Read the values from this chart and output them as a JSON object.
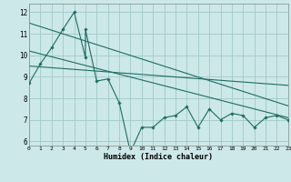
{
  "xlabel": "Humidex (Indice chaleur)",
  "xlim": [
    0,
    23
  ],
  "ylim": [
    5.8,
    12.4
  ],
  "xticks": [
    0,
    1,
    2,
    3,
    4,
    5,
    6,
    7,
    8,
    9,
    10,
    11,
    12,
    13,
    14,
    15,
    16,
    17,
    18,
    19,
    20,
    21,
    22,
    23
  ],
  "yticks": [
    6,
    7,
    8,
    9,
    10,
    11,
    12
  ],
  "bg_color": "#cde8e8",
  "grid_color": "#a0c8c8",
  "line_color": "#1a6e64",
  "data_x": [
    0,
    1,
    2,
    3,
    4,
    5,
    5,
    6,
    7,
    8,
    9,
    10,
    11,
    12,
    13,
    14,
    15,
    16,
    17,
    18,
    19,
    20,
    21,
    22,
    23
  ],
  "data_y": [
    8.7,
    9.6,
    10.35,
    11.2,
    12.0,
    9.9,
    11.2,
    8.8,
    8.9,
    7.8,
    5.5,
    6.65,
    6.65,
    7.1,
    7.2,
    7.6,
    6.65,
    7.5,
    7.0,
    7.3,
    7.2,
    6.65,
    7.1,
    7.2,
    7.0
  ],
  "trend1_x": [
    0,
    23
  ],
  "trend1_y": [
    11.5,
    7.65
  ],
  "trend2_x": [
    0,
    23
  ],
  "trend2_y": [
    10.2,
    7.1
  ],
  "trend3_x": [
    0,
    23
  ],
  "trend3_y": [
    9.5,
    8.6
  ]
}
